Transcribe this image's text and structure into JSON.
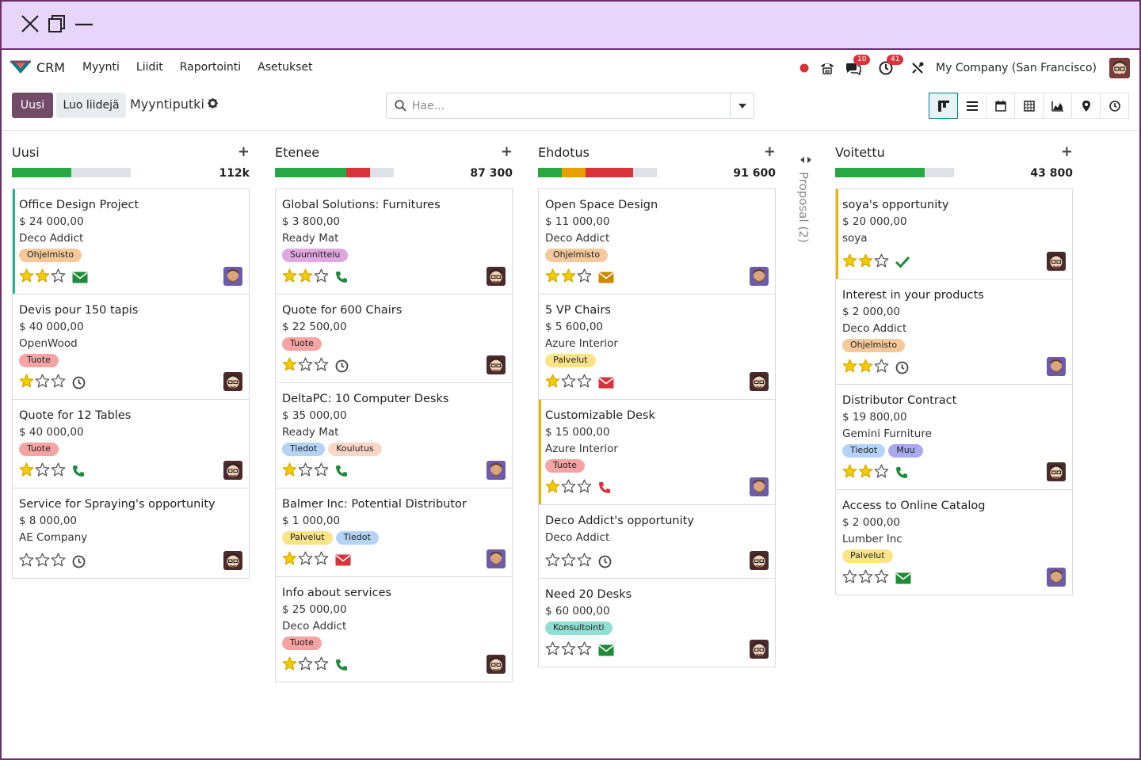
{
  "window": {
    "close_icon": "close-icon",
    "restore_icon": "restore-icon",
    "minimize_icon": "minimize-icon"
  },
  "navbar": {
    "app_name": "CRM",
    "menu": [
      "Myynti",
      "Liidit",
      "Raportointi",
      "Asetukset"
    ],
    "messages_count": "10",
    "activities_count": "41",
    "company": "My Company (San Francisco)"
  },
  "control": {
    "new_label": "Uusi",
    "lead_label": "Luo liidejä",
    "breadcrumb": "Myyntiputki",
    "search_placeholder": "Hae..."
  },
  "colors": {
    "primary": "#714b67",
    "accent": "#017e84",
    "green": "#28a745",
    "red": "#d8333a",
    "orange": "#e89f00",
    "star": "#f3cc00"
  },
  "columns": [
    {
      "title": "Uusi",
      "total": "112k",
      "progress": [
        {
          "color": "#28a745",
          "fraction": 0.5
        },
        {
          "color": "#dee2e6",
          "fraction": 0.5
        }
      ],
      "cards": [
        {
          "title": "Office Design Project",
          "amount": "$ 24 000,00",
          "company": "Deco Addict",
          "tags": [
            {
              "label": "Ohjelmisto",
              "color": "#f5c99a"
            }
          ],
          "stars": 2,
          "activity": "mail-green",
          "avatar": "purple",
          "accent": "green"
        },
        {
          "title": "Devis pour 150 tapis",
          "amount": "$ 40 000,00",
          "company": "OpenWood",
          "tags": [
            {
              "label": "Tuote",
              "color": "#f6a3a3"
            }
          ],
          "stars": 1,
          "activity": "clock",
          "avatar": "dark"
        },
        {
          "title": "Quote for 12 Tables",
          "amount": "$ 40 000,00",
          "company": "",
          "tags": [
            {
              "label": "Tuote",
              "color": "#f6a3a3"
            }
          ],
          "stars": 1,
          "activity": "phone-green",
          "avatar": "dark"
        },
        {
          "title": "Service for Spraying's opportunity",
          "amount": "$ 8 000,00",
          "company": "AE Company",
          "tags": [],
          "stars": 0,
          "activity": "clock",
          "avatar": "dark"
        }
      ]
    },
    {
      "title": "Etenee",
      "total": "87 300",
      "progress": [
        {
          "color": "#28a745",
          "fraction": 0.6
        },
        {
          "color": "#d8333a",
          "fraction": 0.2
        },
        {
          "color": "#dee2e6",
          "fraction": 0.2
        }
      ],
      "cards": [
        {
          "title": "Global Solutions: Furnitures",
          "amount": "$ 3 800,00",
          "company": "Ready Mat",
          "tags": [
            {
              "label": "Suunnittelu",
              "color": "#e1a7e1"
            }
          ],
          "stars": 2,
          "activity": "phone-green",
          "avatar": "dark"
        },
        {
          "title": "Quote for 600 Chairs",
          "amount": "$ 22 500,00",
          "company": "",
          "tags": [
            {
              "label": "Tuote",
              "color": "#f6a3a3"
            }
          ],
          "stars": 1,
          "activity": "clock",
          "avatar": "dark"
        },
        {
          "title": "DeltaPC: 10 Computer Desks",
          "amount": "$ 35 000,00",
          "company": "Ready Mat",
          "tags": [
            {
              "label": "Tiedot",
              "color": "#b4d3f5"
            },
            {
              "label": "Koulutus",
              "color": "#fad7c5"
            }
          ],
          "stars": 1,
          "activity": "phone-green",
          "avatar": "purple"
        },
        {
          "title": "Balmer Inc: Potential Distributor",
          "amount": "$ 1 000,00",
          "company": "",
          "tags": [
            {
              "label": "Palvelut",
              "color": "#fbe488"
            },
            {
              "label": "Tiedot",
              "color": "#b4d3f5"
            }
          ],
          "stars": 1,
          "activity": "mail-red",
          "avatar": "purple"
        },
        {
          "title": "Info about services",
          "amount": "$ 25 000,00",
          "company": "Deco Addict",
          "tags": [
            {
              "label": "Tuote",
              "color": "#f6a3a3"
            }
          ],
          "stars": 1,
          "activity": "phone-green",
          "avatar": "dark"
        }
      ]
    },
    {
      "title": "Ehdotus",
      "total": "91 600",
      "progress": [
        {
          "color": "#28a745",
          "fraction": 0.2
        },
        {
          "color": "#e89f00",
          "fraction": 0.2
        },
        {
          "color": "#d8333a",
          "fraction": 0.4
        },
        {
          "color": "#dee2e6",
          "fraction": 0.2
        }
      ],
      "cards": [
        {
          "title": "Open Space Design",
          "amount": "$ 11 000,00",
          "company": "Deco Addict",
          "tags": [
            {
              "label": "Ohjelmisto",
              "color": "#f5c99a"
            }
          ],
          "stars": 2,
          "activity": "mail-orange",
          "avatar": "purple"
        },
        {
          "title": "5 VP Chairs",
          "amount": "$ 5 600,00",
          "company": "Azure Interior",
          "tags": [
            {
              "label": "Palvelut",
              "color": "#fbe488"
            }
          ],
          "stars": 1,
          "activity": "mail-red",
          "avatar": "dark"
        },
        {
          "title": "Customizable Desk",
          "amount": "$ 15 000,00",
          "company": "Azure Interior",
          "tags": [
            {
              "label": "Tuote",
              "color": "#f6a3a3"
            }
          ],
          "stars": 1,
          "activity": "phone-red",
          "avatar": "purple",
          "accent": "yellow"
        },
        {
          "title": "Deco Addict's opportunity",
          "amount": "",
          "company": "Deco Addict",
          "tags": [],
          "stars": 0,
          "activity": "clock",
          "avatar": "dark"
        },
        {
          "title": "Need 20 Desks",
          "amount": "$ 60 000,00",
          "company": "",
          "tags": [
            {
              "label": "Konsultointi",
              "color": "#8fe0d2"
            }
          ],
          "stars": 0,
          "activity": "mail-green",
          "avatar": "dark"
        }
      ]
    },
    {
      "title": "Voitettu",
      "total": "43 800",
      "progress": [
        {
          "color": "#28a745",
          "fraction": 0.75
        },
        {
          "color": "#dee2e6",
          "fraction": 0.25
        }
      ],
      "cards": [
        {
          "title": "soya's opportunity",
          "amount": "$ 20 000,00",
          "company": "soya",
          "tags": [],
          "stars": 2,
          "activity": "check-green",
          "avatar": "dark",
          "accent": "yellow"
        },
        {
          "title": "Interest in your products",
          "amount": "$ 2 000,00",
          "company": "Deco Addict",
          "tags": [
            {
              "label": "Ohjelmisto",
              "color": "#f5c99a"
            }
          ],
          "stars": 2,
          "activity": "clock",
          "avatar": "purple"
        },
        {
          "title": "Distributor Contract",
          "amount": "$ 19 800,00",
          "company": "Gemini Furniture",
          "tags": [
            {
              "label": "Tiedot",
              "color": "#b4d3f5"
            },
            {
              "label": "Muu",
              "color": "#a9a9f2"
            }
          ],
          "stars": 2,
          "activity": "phone-green",
          "avatar": "dark"
        },
        {
          "title": "Access to Online Catalog",
          "amount": "$ 2 000,00",
          "company": "Lumber Inc",
          "tags": [
            {
              "label": "Palvelut",
              "color": "#fbe488"
            }
          ],
          "stars": 0,
          "activity": "mail-green",
          "avatar": "purple"
        }
      ]
    }
  ],
  "folded_column": {
    "label": "Proposal (2)"
  }
}
